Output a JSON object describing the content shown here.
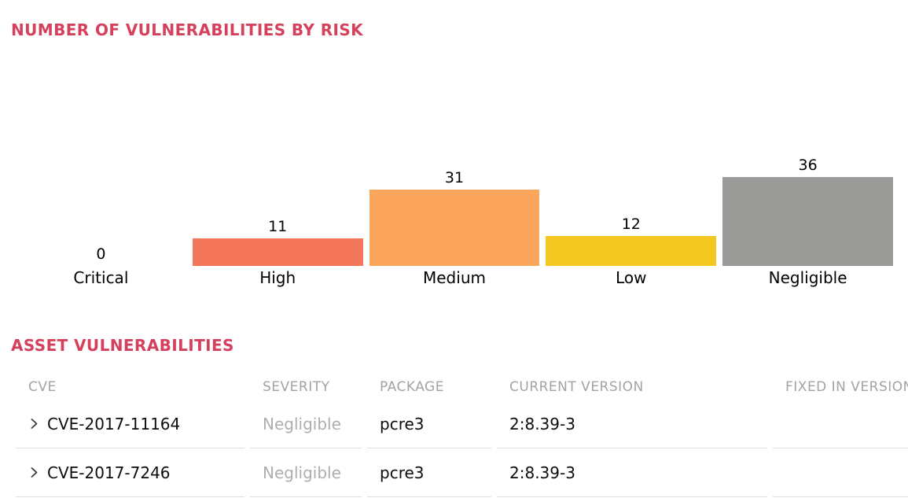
{
  "page": {
    "background": "#ffffff",
    "accent_title_color": "#d5415c"
  },
  "chart": {
    "title": "NUMBER OF VULNERABILITIES BY RISK",
    "chart_data": {
      "type": "bar",
      "categories": [
        "Critical",
        "High",
        "Medium",
        "Low",
        "Negligible"
      ],
      "values": [
        0,
        11,
        31,
        12,
        36
      ],
      "colors": [
        null,
        "#f4775b",
        "#fba55d",
        "#f5c821",
        "#9a9a98"
      ],
      "title": "NUMBER OF VULNERABILITIES BY RISK",
      "xlabel": "",
      "ylabel": "",
      "ylim": [
        0,
        44
      ],
      "grid": false,
      "legend": false,
      "value_labels": true,
      "bar_label_color": "#000000"
    }
  },
  "assets": {
    "title": "ASSET VULNERABILITIES",
    "table": {
      "headers": [
        "CVE",
        "SEVERITY",
        "PACKAGE",
        "CURRENT VERSION",
        "FIXED IN VERSION"
      ],
      "rows": [
        {
          "cve": "CVE-2017-11164",
          "severity": "Negligible",
          "package": "pcre3",
          "current_version": "2:8.39-3",
          "fixed_in_version": ""
        },
        {
          "cve": "CVE-2017-7246",
          "severity": "Negligible",
          "package": "pcre3",
          "current_version": "2:8.39-3",
          "fixed_in_version": ""
        }
      ]
    }
  }
}
